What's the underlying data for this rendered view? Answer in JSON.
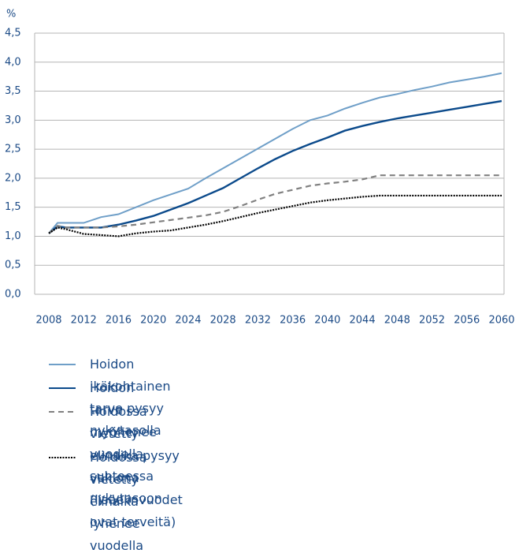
{
  "chart_data": {
    "type": "line",
    "y_label": "%",
    "x": [
      2008,
      2009,
      2010,
      2012,
      2014,
      2016,
      2018,
      2020,
      2022,
      2024,
      2026,
      2028,
      2030,
      2032,
      2034,
      2036,
      2038,
      2040,
      2042,
      2044,
      2046,
      2048,
      2050,
      2052,
      2054,
      2056,
      2058,
      2060
    ],
    "xlim": [
      2008,
      2060
    ],
    "xticks": [
      2008,
      2012,
      2016,
      2020,
      2024,
      2028,
      2032,
      2036,
      2040,
      2044,
      2048,
      2052,
      2056,
      2060
    ],
    "ylim": [
      0,
      4.5
    ],
    "yticks": [
      {
        "value": 0,
        "label": "0,0"
      },
      {
        "value": 0.5,
        "label": "0,5"
      },
      {
        "value": 1,
        "label": "1,0"
      },
      {
        "value": 1.5,
        "label": "1,5"
      },
      {
        "value": 2,
        "label": "2,0"
      },
      {
        "value": 2.5,
        "label": "2,5"
      },
      {
        "value": 3,
        "label": "3,0"
      },
      {
        "value": 3.5,
        "label": "3,5"
      },
      {
        "value": 4,
        "label": "4,0"
      },
      {
        "value": 4.5,
        "label": "4,5"
      }
    ],
    "grid": true,
    "series": [
      {
        "name": "Hoidon ikäkohtainen tarve pysyy nykytasolla",
        "color": "#6f9fc8",
        "style": "solid",
        "values": [
          1.05,
          1.23,
          1.23,
          1.23,
          1.33,
          1.38,
          1.5,
          1.62,
          1.72,
          1.82,
          2.0,
          2.17,
          2.34,
          2.51,
          2.68,
          2.85,
          3.0,
          3.08,
          3.2,
          3.3,
          3.39,
          3.45,
          3.52,
          3.58,
          3.65,
          3.7,
          3.75,
          3.81
        ]
      },
      {
        "name": "Hoidon tarve myöhenee vuodella suhteessa nykytasoon",
        "color": "#0b4a8b",
        "style": "solid",
        "values": [
          1.05,
          1.17,
          1.15,
          1.15,
          1.15,
          1.2,
          1.27,
          1.35,
          1.46,
          1.57,
          1.7,
          1.83,
          2.0,
          2.17,
          2.33,
          2.47,
          2.59,
          2.7,
          2.82,
          2.9,
          2.97,
          3.03,
          3.08,
          3.13,
          3.18,
          3.23,
          3.28,
          3.33
        ]
      },
      {
        "name": "Hoidossa vietetty elinaika pysyy vakiona\n(lisäelinvuodet ovat terveitä)",
        "color": "#808080",
        "style": "dashed",
        "values": [
          1.05,
          1.18,
          1.15,
          1.15,
          1.15,
          1.17,
          1.2,
          1.24,
          1.28,
          1.32,
          1.36,
          1.42,
          1.52,
          1.63,
          1.73,
          1.8,
          1.87,
          1.91,
          1.94,
          1.98,
          2.05,
          2.05,
          2.05,
          2.05,
          2.05,
          2.05,
          2.05,
          2.05
        ]
      },
      {
        "name": "Hoidossa vietetty elinaika lyhenee vuodella",
        "color": "#000000",
        "style": "dotted",
        "values": [
          1.05,
          1.15,
          1.12,
          1.04,
          1.02,
          1.0,
          1.05,
          1.08,
          1.1,
          1.15,
          1.2,
          1.26,
          1.33,
          1.4,
          1.46,
          1.52,
          1.58,
          1.62,
          1.65,
          1.68,
          1.7,
          1.7,
          1.7,
          1.7,
          1.7,
          1.7,
          1.7,
          1.7
        ]
      }
    ]
  }
}
